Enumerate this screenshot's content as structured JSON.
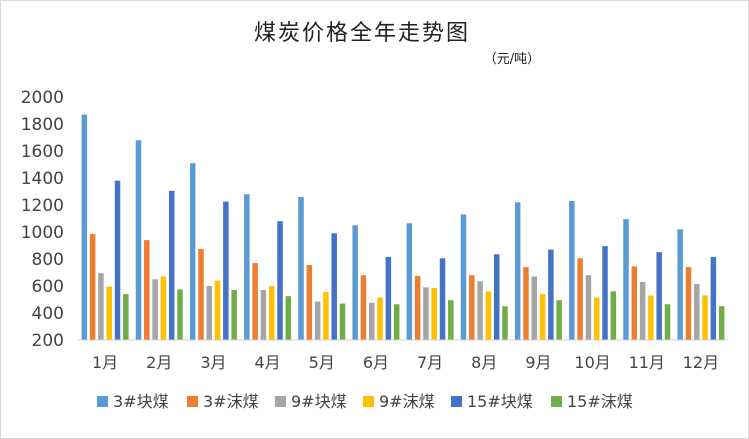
{
  "chart_data": {
    "type": "bar",
    "title": "煤炭价格全年走势图",
    "unit": "（元/吨）",
    "xlabel": "",
    "ylabel": "",
    "ylim": [
      200,
      2000
    ],
    "yticks": [
      "2000",
      "1800",
      "1600",
      "1400",
      "1200",
      "1000",
      "800",
      "600",
      "400",
      "200"
    ],
    "categories": [
      "1月",
      "2月",
      "3月",
      "4月",
      "5月",
      "6月",
      "7月",
      "8月",
      "9月",
      "10月",
      "11月",
      "12月"
    ],
    "legend_position": "bottom",
    "grid": false,
    "series": [
      {
        "name": "3#块煤",
        "color": "#5B9BD5",
        "values": [
          1870,
          1680,
          1510,
          1280,
          1260,
          1050,
          1065,
          1130,
          1220,
          1230,
          1095,
          1020
        ]
      },
      {
        "name": "3#沫煤",
        "color": "#ED7D31",
        "values": [
          985,
          940,
          875,
          770,
          755,
          680,
          675,
          680,
          740,
          805,
          745,
          740
        ]
      },
      {
        "name": "9#块煤",
        "color": "#A5A5A5",
        "values": [
          695,
          650,
          600,
          570,
          485,
          475,
          590,
          635,
          670,
          680,
          630,
          615
        ]
      },
      {
        "name": "9#沫煤",
        "color": "#FFC000",
        "values": [
          595,
          670,
          640,
          600,
          555,
          515,
          585,
          560,
          540,
          515,
          530,
          530
        ]
      },
      {
        "name": "15#块煤",
        "color": "#4472C4",
        "values": [
          1380,
          1305,
          1225,
          1080,
          990,
          815,
          805,
          835,
          870,
          895,
          850,
          815
        ]
      },
      {
        "name": "15#沫煤",
        "color": "#70AD47",
        "values": [
          540,
          575,
          570,
          525,
          470,
          465,
          495,
          450,
          495,
          560,
          465,
          450
        ]
      }
    ]
  }
}
